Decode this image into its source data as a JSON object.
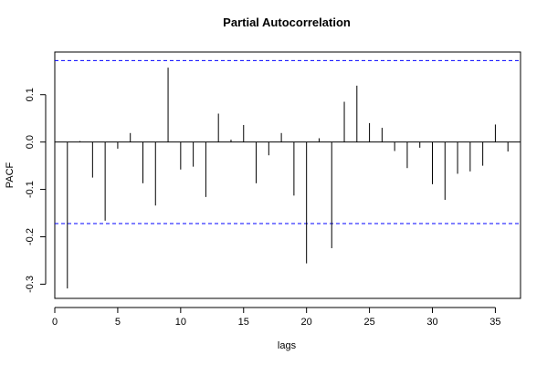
{
  "chart_data": {
    "type": "bar",
    "title": "Partial Autocorrelation",
    "xlabel": "lags",
    "ylabel": "PACF",
    "xlim": [
      0,
      37
    ],
    "ylim": [
      -0.33,
      0.19
    ],
    "xticks": [
      0,
      5,
      10,
      15,
      20,
      25,
      30,
      35
    ],
    "xtick_labels": [
      "0",
      "5",
      "10",
      "15",
      "20",
      "25",
      "30",
      "35"
    ],
    "yticks": [
      -0.3,
      -0.2,
      -0.1,
      0.0,
      0.1
    ],
    "ytick_labels": [
      "-0.3",
      "-0.2",
      "-0.1",
      "0.0",
      "0.1"
    ],
    "confidence_band": 0.172,
    "confidence_color": "#0000ff",
    "grid": false,
    "lags": [
      1,
      2,
      3,
      4,
      5,
      6,
      7,
      8,
      9,
      10,
      11,
      12,
      13,
      14,
      15,
      16,
      17,
      18,
      19,
      20,
      21,
      22,
      23,
      24,
      25,
      26,
      27,
      28,
      29,
      30,
      31,
      32,
      33,
      34,
      35,
      36
    ],
    "values": [
      -0.309,
      0.002,
      -0.075,
      -0.166,
      -0.014,
      0.019,
      -0.087,
      -0.134,
      0.157,
      -0.058,
      -0.052,
      -0.116,
      0.06,
      0.005,
      0.036,
      -0.087,
      -0.028,
      0.019,
      -0.113,
      -0.256,
      0.008,
      -0.224,
      0.085,
      0.119,
      0.04,
      0.03,
      -0.019,
      -0.055,
      -0.012,
      -0.089,
      -0.122,
      -0.067,
      -0.062,
      -0.05,
      0.037,
      -0.02
    ]
  }
}
